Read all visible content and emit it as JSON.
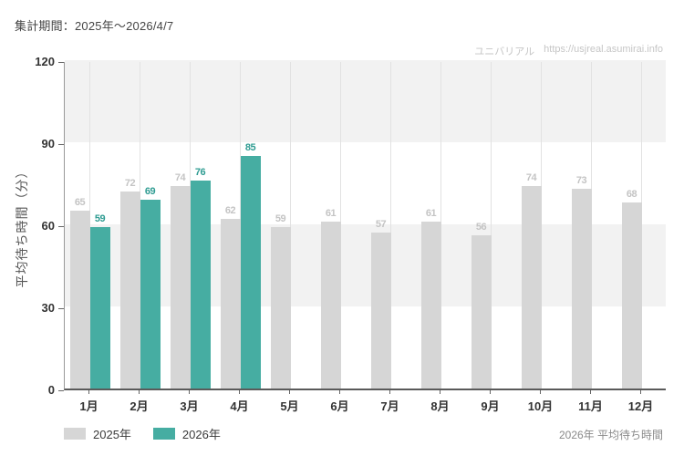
{
  "header": {
    "title": "集計期間：2025年～2026/4/7",
    "watermark_brand": "ユニバリアル",
    "watermark_url": "https://usjreal.asumirai.info"
  },
  "footer": {
    "note": "2026年 平均待ち時間"
  },
  "chart_data": {
    "type": "bar",
    "title": "集計期間：2025年～2026/4/7",
    "ylabel": "平均待ち時間（分）",
    "xlabel": "",
    "categories": [
      "1月",
      "2月",
      "3月",
      "4月",
      "5月",
      "6月",
      "7月",
      "8月",
      "9月",
      "10月",
      "11月",
      "12月"
    ],
    "series": [
      {
        "name": "2025年",
        "color": "#d6d6d6",
        "label_color": "#c4c4c4",
        "values": [
          65,
          72,
          74,
          62,
          59,
          61,
          57,
          61,
          56,
          74,
          73,
          68
        ]
      },
      {
        "name": "2026年",
        "color": "#46ada2",
        "label_color": "#2f9c92",
        "values": [
          59,
          69,
          76,
          85,
          null,
          null,
          null,
          null,
          null,
          null,
          null,
          null
        ]
      }
    ],
    "ylim": [
      0,
      120
    ],
    "yticks": [
      0,
      30,
      60,
      90,
      120
    ],
    "band_rows": [
      [
        30,
        60
      ],
      [
        90,
        120
      ]
    ],
    "grid": "vertical-month-gridlines + banded-rows",
    "legend_position": "bottom-left"
  }
}
